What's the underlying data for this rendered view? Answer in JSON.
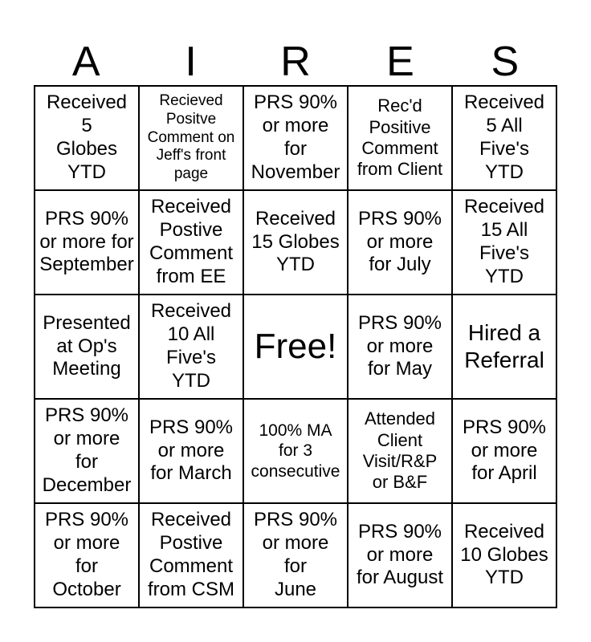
{
  "header": {
    "letters": [
      "A",
      "I",
      "R",
      "E",
      "S"
    ]
  },
  "card": {
    "rows": [
      [
        "Received\n5\nGlobes\nYTD",
        "Recieved\nPositve\nComment on\nJeff's front\npage",
        "PRS 90%\nor more\nfor\nNovember",
        "Rec'd\nPositive\nComment\nfrom Client",
        "Received\n5 All\nFive's\nYTD"
      ],
      [
        "PRS 90%\nor more for\nSeptember",
        "Received\nPostive\nComment\nfrom EE",
        "Received\n15 Globes\nYTD",
        "PRS 90%\nor more\nfor July",
        "Received\n15 All\nFive's\nYTD"
      ],
      [
        "Presented\nat Op's\nMeeting",
        "Received\n10 All\nFive's\nYTD",
        "Free!",
        "PRS 90%\nor more\nfor May",
        "Hired a\nReferral"
      ],
      [
        "PRS 90%\nor more\nfor\nDecember",
        "PRS 90%\nor more\nfor March",
        "100% MA\nfor 3\nconsecutive",
        "Attended\nClient\nVisit/R&P\nor B&F",
        "PRS 90%\nor more\nfor April"
      ],
      [
        "PRS 90%\nor more\nfor\nOctober",
        "Received\nPostive\nComment\nfrom CSM",
        "PRS 90%\nor more\nfor\nJune",
        "PRS 90%\nor more\nfor August",
        "Received\n10 Globes\nYTD"
      ]
    ]
  },
  "colors": {
    "ink": "#000000",
    "background": "#ffffff"
  }
}
